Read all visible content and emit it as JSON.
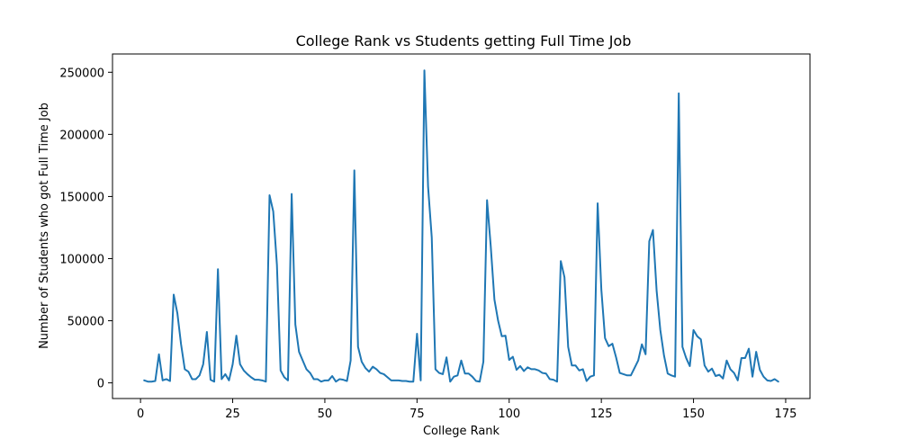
{
  "chart_data": {
    "type": "line",
    "title": "College Rank vs Students getting Full Time Job",
    "xlabel": "College Rank",
    "ylabel": "Number of Students who got Full Time Job",
    "xlim": [
      -7.6,
      181.6
    ],
    "ylim": [
      -12600,
      264700
    ],
    "xticks": [
      0,
      25,
      50,
      75,
      100,
      125,
      150,
      175
    ],
    "xtick_labels": [
      "0",
      "25",
      "50",
      "75",
      "100",
      "125",
      "150",
      "175"
    ],
    "yticks": [
      0,
      50000,
      100000,
      150000,
      200000,
      250000
    ],
    "ytick_labels": [
      "0",
      "50000",
      "100000",
      "150000",
      "200000",
      "250000"
    ],
    "grid": false,
    "legend": "none",
    "color": "#1f77b4",
    "x": [
      1,
      2,
      3,
      4,
      5,
      6,
      7,
      8,
      9,
      10,
      11,
      12,
      13,
      14,
      15,
      16,
      17,
      18,
      19,
      20,
      21,
      22,
      23,
      24,
      25,
      26,
      27,
      28,
      29,
      30,
      31,
      32,
      33,
      34,
      35,
      36,
      37,
      38,
      39,
      40,
      41,
      42,
      43,
      44,
      45,
      46,
      47,
      48,
      49,
      50,
      51,
      52,
      53,
      54,
      55,
      56,
      57,
      58,
      59,
      60,
      61,
      62,
      63,
      64,
      65,
      66,
      67,
      68,
      69,
      70,
      71,
      72,
      73,
      74,
      75,
      76,
      77,
      78,
      79,
      80,
      81,
      82,
      83,
      84,
      85,
      86,
      87,
      88,
      89,
      90,
      91,
      92,
      93,
      94,
      95,
      96,
      97,
      98,
      99,
      100,
      101,
      102,
      103,
      104,
      105,
      106,
      107,
      108,
      109,
      110,
      111,
      112,
      113,
      114,
      115,
      116,
      117,
      118,
      119,
      120,
      121,
      122,
      123,
      124,
      125,
      126,
      127,
      128,
      129,
      130,
      131,
      132,
      133,
      134,
      135,
      136,
      137,
      138,
      139,
      140,
      141,
      142,
      143,
      144,
      145,
      146,
      147,
      148,
      149,
      150,
      151,
      152,
      153,
      154,
      155,
      156,
      157,
      158,
      159,
      160,
      161,
      162,
      163,
      164,
      165,
      166,
      167,
      168,
      169,
      170,
      171,
      172,
      173
    ],
    "y": [
      2000,
      1000,
      1000,
      1500,
      23000,
      2000,
      3000,
      1500,
      71000,
      56000,
      31000,
      11000,
      9000,
      3000,
      3000,
      6000,
      15000,
      41000,
      2500,
      1000,
      91500,
      3000,
      7000,
      2000,
      15000,
      38000,
      15000,
      10000,
      7000,
      4500,
      2500,
      2500,
      2000,
      1000,
      151000,
      138000,
      95000,
      10000,
      4500,
      2000,
      152000,
      47000,
      25000,
      18000,
      11000,
      8000,
      3000,
      3000,
      1000,
      2000,
      2000,
      5500,
      1000,
      3000,
      2500,
      1500,
      18000,
      171000,
      29000,
      17000,
      12000,
      9000,
      13000,
      11000,
      8000,
      7000,
      4500,
      2000,
      2000,
      2000,
      1500,
      1500,
      1000,
      1000,
      39500,
      2000,
      251500,
      158000,
      117000,
      11000,
      8000,
      7000,
      20500,
      1000,
      5000,
      6000,
      18000,
      7500,
      7500,
      5000,
      1500,
      1000,
      17000,
      147000,
      110000,
      67000,
      50000,
      37500,
      38000,
      18500,
      21000,
      10500,
      13500,
      9500,
      12500,
      11000,
      11000,
      10000,
      8000,
      7500,
      3000,
      2500,
      1000,
      98000,
      85000,
      29000,
      14000,
      14000,
      10000,
      11000,
      1500,
      5000,
      6000,
      144500,
      75000,
      36000,
      29500,
      31500,
      20500,
      8000,
      7000,
      6000,
      6000,
      12000,
      18000,
      31000,
      23000,
      114000,
      123000,
      74000,
      42500,
      22000,
      7500,
      6000,
      5000,
      233000,
      29000,
      20000,
      13500,
      42500,
      37500,
      35000,
      14000,
      9000,
      11500,
      5500,
      6500,
      3500,
      18000,
      11000,
      8000,
      2000,
      20000,
      20000,
      27500,
      5000,
      25000,
      10500,
      5000,
      2000,
      1500,
      3000,
      1000
    ]
  }
}
